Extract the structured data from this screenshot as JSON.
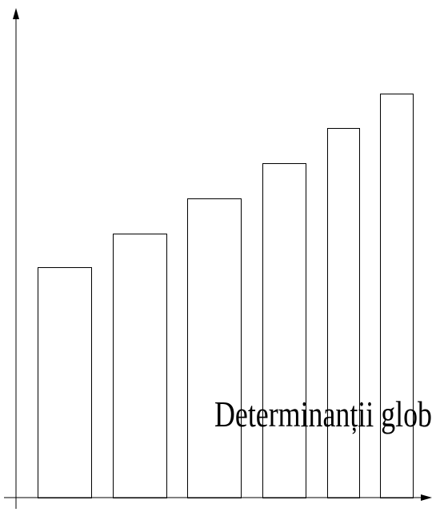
{
  "chart_data": {
    "type": "bar",
    "categories": [
      "",
      "",
      "",
      "",
      "",
      ""
    ],
    "values": [
      288,
      330,
      374,
      418,
      462,
      505
    ],
    "ylim": [
      0,
      610
    ],
    "title": "",
    "xlabel": "",
    "ylabel": "",
    "annotation": "Determinanții glob",
    "grid": false,
    "legend": "none",
    "colors": {
      "bar_fill": "#ffffff",
      "bar_stroke": "#000000",
      "axis": "#000000"
    }
  }
}
